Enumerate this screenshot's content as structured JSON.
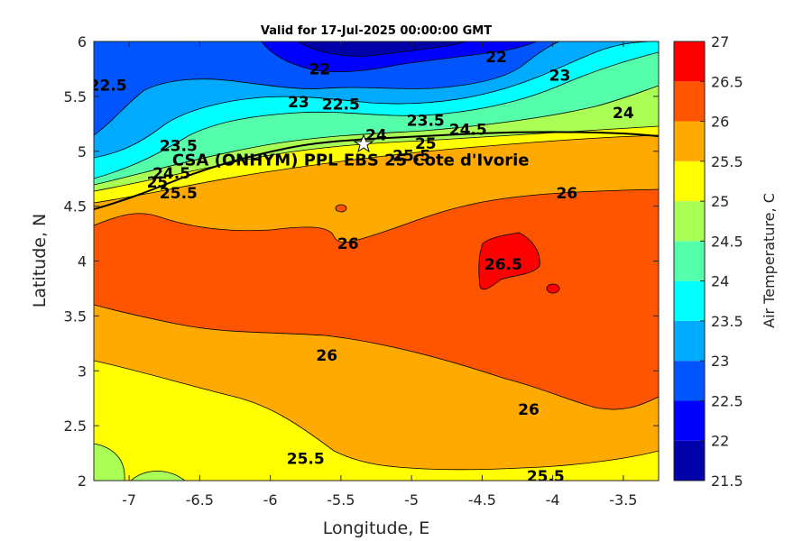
{
  "chart_data": {
    "type": "heatmap",
    "title": "Valid for 17-Jul-2025 00:00:00 GMT",
    "xlabel": "Longitude, E",
    "ylabel": "Latitude, N",
    "xlim": [
      -7.25,
      -3.25
    ],
    "ylim": [
      2,
      6
    ],
    "xticks": [
      "-7",
      "-6.5",
      "-6",
      "-5.5",
      "-5",
      "-4.5",
      "-4",
      "-3.5"
    ],
    "yticks": [
      "2",
      "2.5",
      "3",
      "3.5",
      "4",
      "4.5",
      "5",
      "5.5",
      "6"
    ],
    "colorbar": {
      "label": "Air Temperature, C",
      "range": [
        21.5,
        27
      ],
      "ticks": [
        "21.5",
        "22",
        "22.5",
        "23",
        "23.5",
        "24",
        "24.5",
        "25",
        "25.5",
        "26",
        "26.5",
        "27"
      ],
      "levels": [
        21.5,
        22,
        22.5,
        23,
        23.5,
        24,
        24.5,
        25,
        25.5,
        26,
        26.5,
        27
      ],
      "colors": [
        "#0000aa",
        "#0000ff",
        "#0055ff",
        "#00aaff",
        "#00ffff",
        "#55ffaa",
        "#aaff55",
        "#ffff00",
        "#ffaa00",
        "#ff5500",
        "#ff0000",
        "#aa0000"
      ]
    },
    "contour_labels": [
      {
        "text": "22",
        "lon": -5.65,
        "lat": 5.75
      },
      {
        "text": "22",
        "lon": -4.4,
        "lat": 5.86
      },
      {
        "text": "22.5",
        "lon": -7.15,
        "lat": 5.6
      },
      {
        "text": "23",
        "lon": -5.8,
        "lat": 5.45
      },
      {
        "text": "22.5",
        "lon": -5.5,
        "lat": 5.43
      },
      {
        "text": "23",
        "lon": -3.95,
        "lat": 5.69
      },
      {
        "text": "23.5",
        "lon": -4.9,
        "lat": 5.28
      },
      {
        "text": "24.5",
        "lon": -4.6,
        "lat": 5.2
      },
      {
        "text": "24",
        "lon": -3.5,
        "lat": 5.35
      },
      {
        "text": "24",
        "lon": -5.25,
        "lat": 5.15
      },
      {
        "text": "25",
        "lon": -4.9,
        "lat": 5.07
      },
      {
        "text": "23.5",
        "lon": -6.65,
        "lat": 5.05
      },
      {
        "text": "24.5",
        "lon": -6.7,
        "lat": 4.8
      },
      {
        "text": "25",
        "lon": -6.8,
        "lat": 4.72
      },
      {
        "text": "25.5",
        "lon": -6.65,
        "lat": 4.62
      },
      {
        "text": "25.5",
        "lon": -5.0,
        "lat": 4.96
      },
      {
        "text": "26",
        "lon": -3.9,
        "lat": 4.62
      },
      {
        "text": "26",
        "lon": -5.45,
        "lat": 4.16
      },
      {
        "text": "26.5",
        "lon": -4.35,
        "lat": 3.97
      },
      {
        "text": "26",
        "lon": -5.6,
        "lat": 3.14
      },
      {
        "text": "26",
        "lon": -4.17,
        "lat": 2.65
      },
      {
        "text": "25.5",
        "lon": -5.75,
        "lat": 2.2
      },
      {
        "text": "25.5",
        "lon": -4.05,
        "lat": 2.04
      }
    ],
    "site": {
      "name": "CSA (ONHYM) PPL EBS 25 Cote d'Ivorie",
      "lon": -5.34,
      "lat": 5.05
    }
  }
}
